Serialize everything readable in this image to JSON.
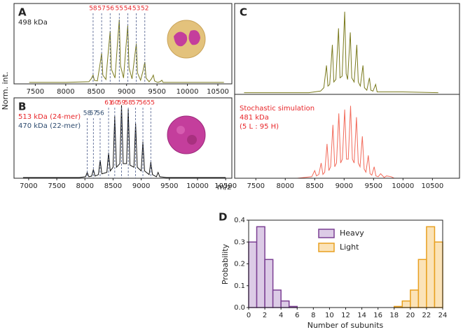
{
  "chart_data": [
    {
      "type": "line",
      "label": "A",
      "ylabel": "Norm. int.",
      "annotations": [
        {
          "text": "498 kDa",
          "color": "#222222"
        }
      ],
      "color": "#7a7a1e",
      "x": [
        7400,
        8000,
        8380,
        8420,
        8450,
        8470,
        8520,
        8560,
        8590,
        8610,
        8660,
        8700,
        8730,
        8750,
        8810,
        8850,
        8880,
        8900,
        8950,
        8990,
        9020,
        9040,
        9090,
        9130,
        9160,
        9180,
        9230,
        9270,
        9300,
        9320,
        9370,
        9410,
        9440,
        9460,
        9510,
        9550,
        9580,
        9600,
        9700,
        10300,
        10600
      ],
      "values": [
        0.02,
        0.02,
        0.03,
        0.07,
        0.12,
        0.05,
        0.04,
        0.25,
        0.42,
        0.12,
        0.06,
        0.45,
        0.72,
        0.2,
        0.08,
        0.55,
        0.88,
        0.25,
        0.08,
        0.5,
        0.8,
        0.22,
        0.07,
        0.35,
        0.55,
        0.15,
        0.05,
        0.18,
        0.3,
        0.08,
        0.03,
        0.07,
        0.12,
        0.04,
        0.02,
        0.03,
        0.05,
        0.02,
        0.02,
        0.02,
        0.02
      ],
      "charge_groups": [
        {
          "color": "#e8262a",
          "line_color": "#4a5a8a",
          "values": [
            58,
            57,
            56,
            55,
            54,
            53,
            52
          ],
          "x": [
            8450,
            8590,
            8730,
            8880,
            9020,
            9160,
            9300
          ]
        }
      ],
      "xlim": [
        7150,
        10730
      ],
      "ylim": [
        0,
        1.1
      ],
      "xticks": [
        7500,
        8000,
        8500,
        9000,
        9500,
        10000,
        10500
      ]
    },
    {
      "type": "line",
      "label": "B",
      "annotations": [
        {
          "text": "513 kDa (24-mer)",
          "color": "#e8262a"
        },
        {
          "text": "470 kDa (22-mer)",
          "color": "#2d4a6e"
        }
      ],
      "color": "#111111",
      "x": [
        6900,
        7900,
        8010,
        8040,
        8070,
        8120,
        8150,
        8180,
        8240,
        8270,
        8300,
        8390,
        8420,
        8450,
        8500,
        8530,
        8560,
        8620,
        8650,
        8680,
        8740,
        8770,
        8800,
        8870,
        8900,
        8930,
        9000,
        9030,
        9060,
        9140,
        9170,
        9200,
        9270,
        9300,
        9330,
        9450,
        10500
      ],
      "values": [
        0.01,
        0.01,
        0.02,
        0.08,
        0.02,
        0.03,
        0.12,
        0.03,
        0.05,
        0.25,
        0.06,
        0.08,
        0.35,
        0.1,
        0.15,
        0.85,
        0.15,
        0.2,
        1.0,
        0.2,
        0.2,
        0.95,
        0.18,
        0.15,
        0.75,
        0.15,
        0.1,
        0.5,
        0.1,
        0.05,
        0.22,
        0.05,
        0.02,
        0.08,
        0.02,
        0.01,
        0.01
      ],
      "charge_groups": [
        {
          "color": "#e8262a",
          "line_color": "#4a5a8a",
          "values": [
            61,
            60,
            59,
            58,
            57,
            56,
            55
          ],
          "x": [
            8420,
            8530,
            8650,
            8770,
            8900,
            9030,
            9170
          ]
        },
        {
          "color": "#2d4a6e",
          "line_color": "#4a5a8a",
          "values": [
            58,
            57,
            56
          ],
          "x": [
            8040,
            8150,
            8270
          ]
        }
      ],
      "xlim": [
        6740,
        10610
      ],
      "ylim": [
        0,
        1.1
      ],
      "xticks": [
        7000,
        7500,
        8000,
        8500,
        9000,
        9500,
        10000,
        10500
      ]
    },
    {
      "type": "line",
      "label": "C",
      "color": "#7a7a1e",
      "x": [
        7300,
        8400,
        8600,
        8655,
        8700,
        8725,
        8755,
        8800,
        8825,
        8860,
        8905,
        8930,
        8965,
        9010,
        9035,
        9060,
        9105,
        9130,
        9170,
        9215,
        9240,
        9275,
        9320,
        9345,
        9385,
        9430,
        9455,
        9490,
        9535,
        9560,
        9700,
        10000,
        10600
      ],
      "values": [
        0.02,
        0.02,
        0.04,
        0.08,
        0.35,
        0.1,
        0.12,
        0.6,
        0.15,
        0.18,
        0.8,
        0.2,
        0.22,
        1.0,
        0.25,
        0.18,
        0.75,
        0.2,
        0.15,
        0.6,
        0.15,
        0.1,
        0.35,
        0.08,
        0.05,
        0.2,
        0.05,
        0.04,
        0.12,
        0.03,
        0.03,
        0.03,
        0.02
      ],
      "xlim": [
        7140,
        10960
      ],
      "ylim": [
        0,
        1.1
      ]
    },
    {
      "type": "line",
      "xlabel": "m/z",
      "annotations": [
        {
          "text": "Stochastic simulation",
          "color": "#e8262a"
        },
        {
          "text": "481 kDa",
          "color": "#e8262a"
        },
        {
          "text": "(5 L : 95 H)",
          "color": "#e8262a"
        }
      ],
      "color": "#f26b5b",
      "x": [
        8200,
        8450,
        8500,
        8530,
        8570,
        8610,
        8640,
        8670,
        8710,
        8740,
        8770,
        8810,
        8840,
        8870,
        8910,
        8940,
        8970,
        9010,
        9040,
        9070,
        9110,
        9140,
        9170,
        9210,
        9240,
        9270,
        9310,
        9340,
        9370,
        9410,
        9440,
        9470,
        9510,
        9540,
        9580,
        9620,
        9680,
        9720,
        9800,
        9850
      ],
      "values": [
        0.0,
        0.02,
        0.1,
        0.03,
        0.05,
        0.2,
        0.05,
        0.08,
        0.45,
        0.1,
        0.15,
        0.7,
        0.15,
        0.2,
        0.85,
        0.2,
        0.25,
        0.9,
        0.25,
        0.25,
        0.95,
        0.25,
        0.2,
        0.8,
        0.2,
        0.15,
        0.55,
        0.12,
        0.08,
        0.3,
        0.06,
        0.04,
        0.15,
        0.03,
        0.02,
        0.06,
        0.01,
        0.03,
        0.02,
        0.0
      ],
      "xlim": [
        7140,
        10960
      ],
      "ylim": [
        0,
        1.1
      ],
      "xticks": [
        7500,
        8000,
        8500,
        9000,
        9500,
        10000,
        10500
      ]
    },
    {
      "type": "histogram",
      "label": "D",
      "xlabel": "Number of subunits",
      "ylabel": "Probability",
      "legend": "upper center",
      "bins": [
        0,
        1,
        2,
        3,
        4,
        5,
        6,
        7,
        8,
        9,
        10,
        11,
        12,
        13,
        14,
        15,
        16,
        17,
        18,
        19,
        20,
        21,
        22,
        23,
        24
      ],
      "series": [
        {
          "name": "Heavy",
          "color": "#7b3f93",
          "fill": "#dccbe6",
          "values": [
            0.3,
            0.37,
            0.22,
            0.08,
            0.03,
            0.005,
            0,
            0,
            0,
            0,
            0,
            0,
            0,
            0,
            0,
            0,
            0,
            0,
            0,
            0,
            0,
            0,
            0,
            0
          ]
        },
        {
          "name": "Light",
          "color": "#e8a020",
          "fill": "#fbe3b8",
          "values": [
            0,
            0,
            0,
            0,
            0,
            0,
            0,
            0,
            0,
            0,
            0,
            0,
            0,
            0,
            0,
            0,
            0,
            0,
            0.005,
            0.03,
            0.08,
            0.22,
            0.37,
            0.3
          ]
        }
      ],
      "xlim": [
        0,
        24
      ],
      "ylim": [
        0,
        0.4
      ],
      "xticks": [
        0,
        2,
        4,
        6,
        8,
        10,
        12,
        14,
        16,
        18,
        20,
        22,
        24
      ],
      "yticks": [
        {
          "value": 0,
          "label": "0.0"
        },
        0.1,
        0.2,
        0.3,
        0.4
      ]
    }
  ]
}
